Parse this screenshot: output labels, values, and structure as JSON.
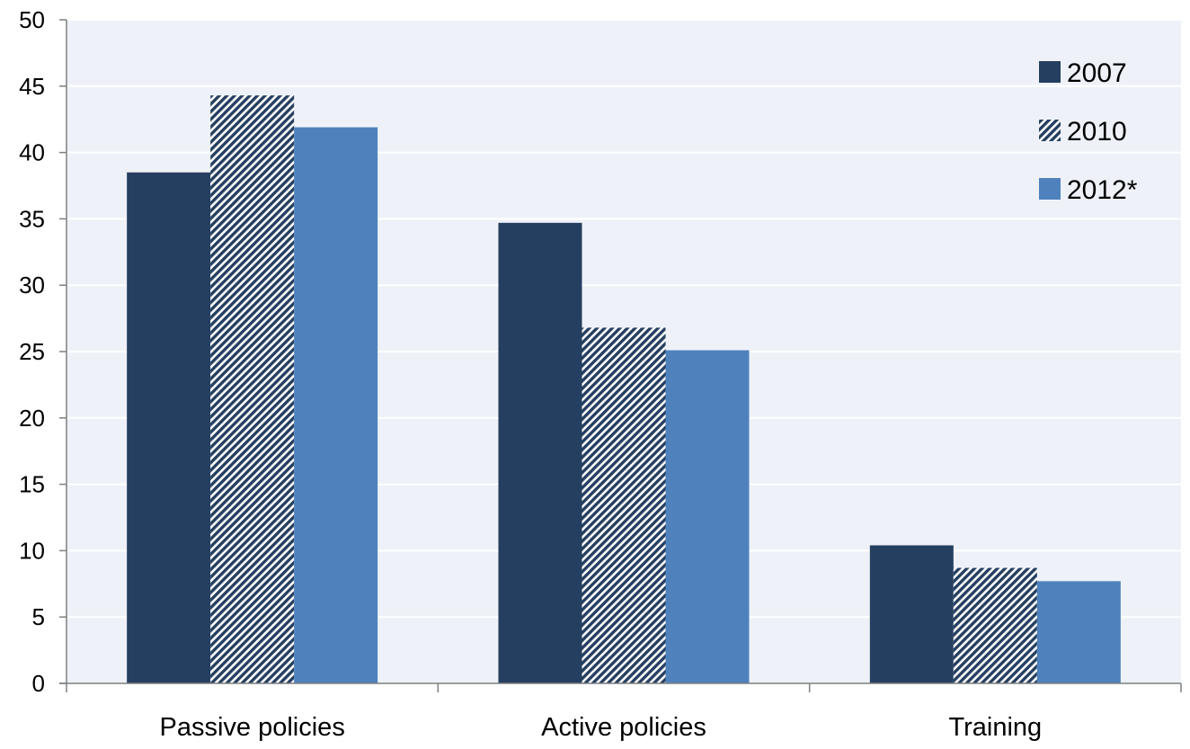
{
  "chart_data": {
    "type": "bar",
    "categories": [
      "Passive policies",
      "Active policies",
      "Training"
    ],
    "series": [
      {
        "name": "2007",
        "values": [
          38.5,
          34.7,
          10.4
        ],
        "color": "#253f60",
        "pattern": "solid"
      },
      {
        "name": "2010",
        "values": [
          44.3,
          26.8,
          8.7
        ],
        "color": "#253f60",
        "pattern": "diagonal-hatch"
      },
      {
        "name": "2012*",
        "values": [
          41.9,
          25.1,
          7.7
        ],
        "color": "#4f81bd",
        "pattern": "solid"
      }
    ],
    "ylim": [
      0,
      50
    ],
    "yticks": [
      0,
      5,
      10,
      15,
      20,
      25,
      30,
      35,
      40,
      45,
      50
    ],
    "grid": true,
    "legend_position": "top-right",
    "plot_background": "#eef2f8",
    "gridline_color": "#ffffff",
    "axis_color": "#7f7f7f"
  }
}
